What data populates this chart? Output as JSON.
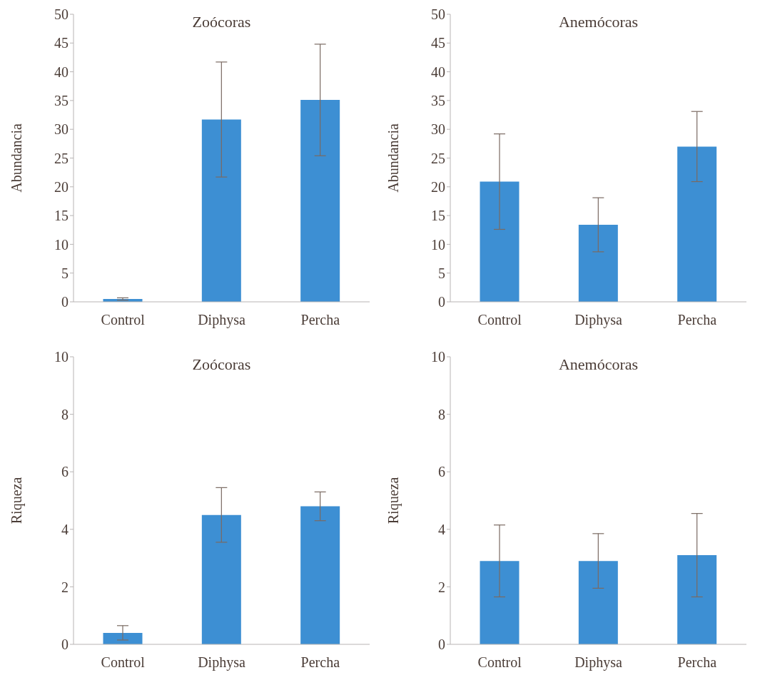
{
  "chart_data": [
    {
      "type": "bar",
      "title": "Zoócoras",
      "ylabel": "Abundancia",
      "categories": [
        "Control",
        "Diphysa",
        "Percha"
      ],
      "values": [
        0.5,
        31.7,
        35.1
      ],
      "errors": [
        0.2,
        10,
        9.7
      ],
      "color": "#3d8fd3",
      "ylim": [
        0,
        50
      ],
      "yticks": [
        0,
        5,
        10,
        15,
        20,
        25,
        30,
        35,
        40,
        45,
        50
      ]
    },
    {
      "type": "bar",
      "title": "Anemócoras",
      "ylabel": "Abundancia",
      "categories": [
        "Control",
        "Diphysa",
        "Percha"
      ],
      "values": [
        20.9,
        13.4,
        27
      ],
      "errors": [
        8.3,
        4.7,
        6.1
      ],
      "color": "#3d8fd3",
      "ylim": [
        0,
        50
      ],
      "yticks": [
        0,
        5,
        10,
        15,
        20,
        25,
        30,
        35,
        40,
        45,
        50
      ]
    },
    {
      "type": "bar",
      "title": "Zoócoras",
      "ylabel": "Riqueza",
      "categories": [
        "Control",
        "Diphysa",
        "Percha"
      ],
      "values": [
        0.4,
        4.5,
        4.8
      ],
      "errors": [
        0.25,
        0.95,
        0.5
      ],
      "color": "#3d8fd3",
      "ylim": [
        0,
        10
      ],
      "yticks": [
        0,
        2,
        4,
        6,
        8,
        10
      ]
    },
    {
      "type": "bar",
      "title": "Anemócoras",
      "ylabel": "Riqueza",
      "categories": [
        "Control",
        "Diphysa",
        "Percha"
      ],
      "values": [
        2.9,
        2.9,
        3.1
      ],
      "errors": [
        1.25,
        0.95,
        1.45
      ],
      "color": "#3d8fd3",
      "ylim": [
        0,
        10
      ],
      "yticks": [
        0,
        2,
        4,
        6,
        8,
        10
      ]
    }
  ]
}
